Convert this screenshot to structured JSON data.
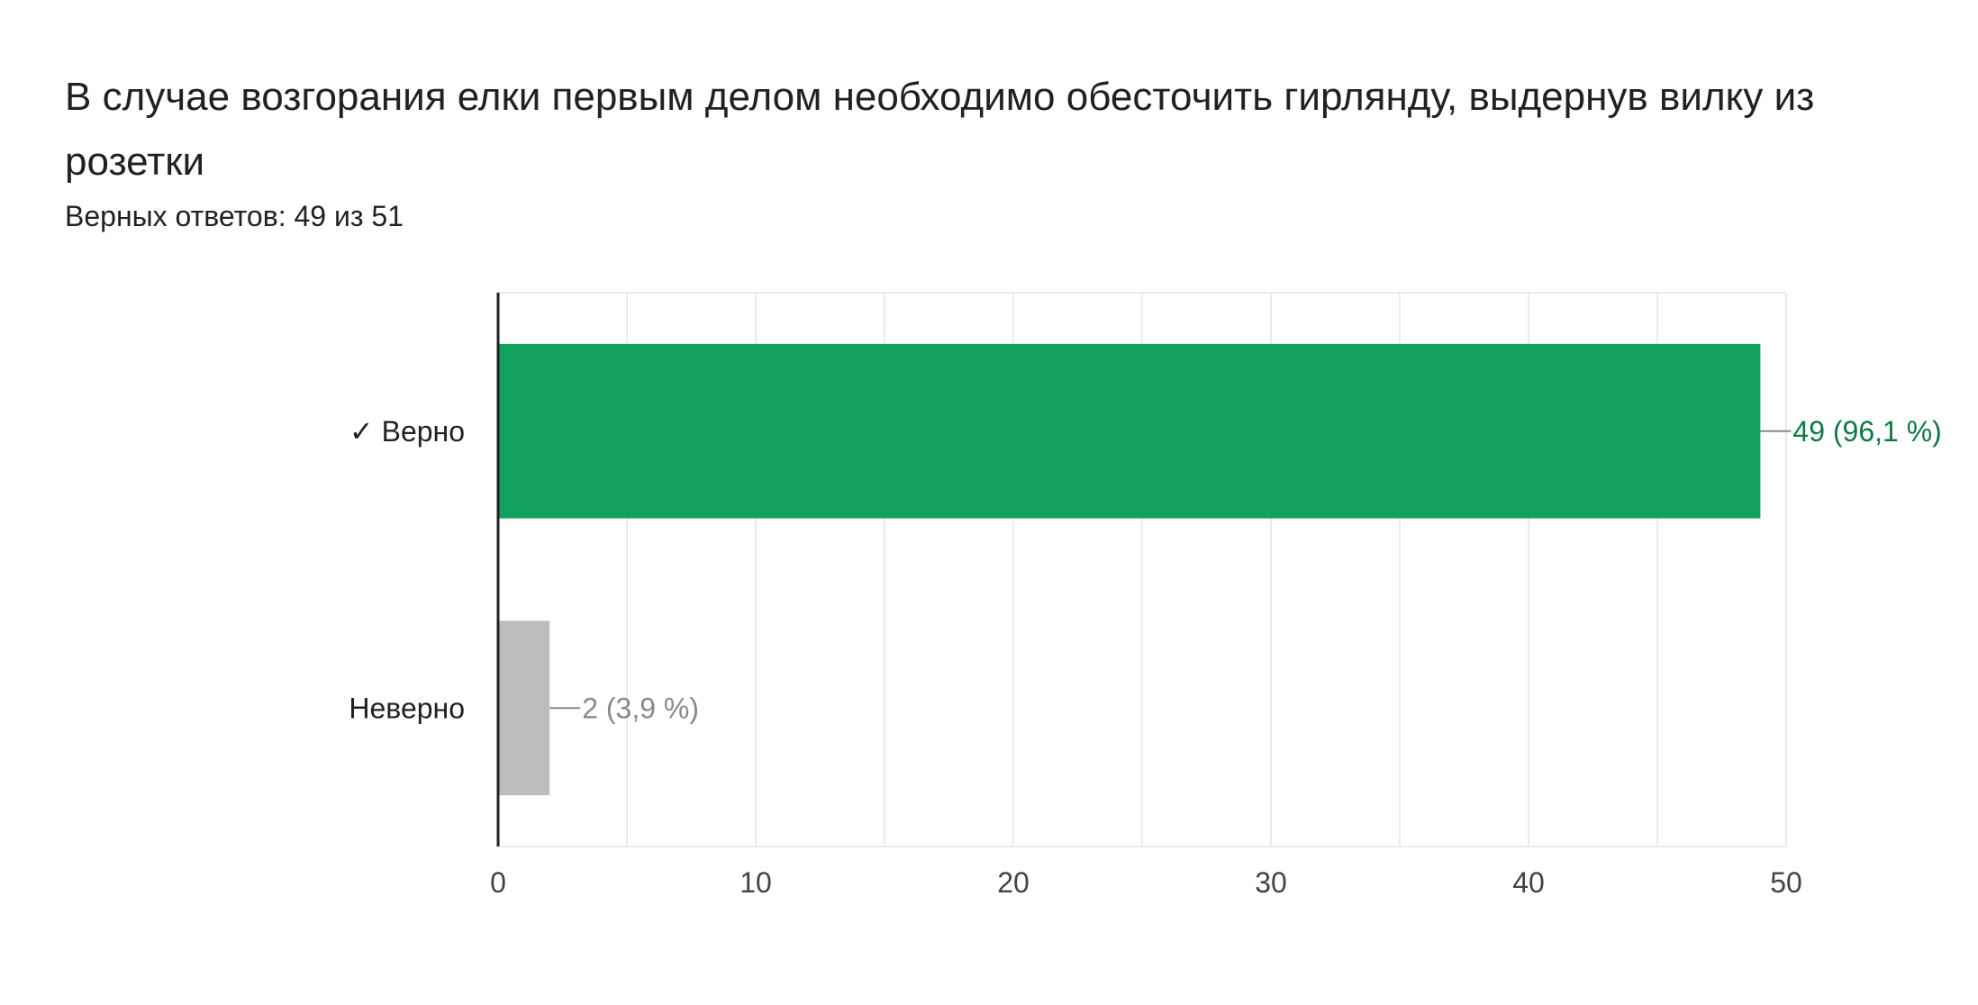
{
  "question": {
    "title": "В случае возгорания елки первым делом необходимо обесточить гирлянду, выдернув вилку из розетки",
    "summary": "Верных ответов: 49 из 51"
  },
  "colors": {
    "correct_bar": "#12a05c",
    "correct_label": "#0d7a45",
    "incorrect_bar": "#bdbdbd",
    "incorrect_label": "#8a8a8a",
    "axis": "#202124",
    "grid": "#ebebeb",
    "tick_text": "#444444"
  },
  "chart_data": {
    "type": "bar",
    "orientation": "horizontal",
    "categories": [
      "✓ Верно",
      "Неверно"
    ],
    "values": [
      49,
      2
    ],
    "value_labels": [
      "49 (96,1 %)",
      "2 (3,9 %)"
    ],
    "xlim": [
      0,
      50
    ],
    "xticks": [
      0,
      10,
      20,
      30,
      40,
      50
    ],
    "grid": true
  }
}
